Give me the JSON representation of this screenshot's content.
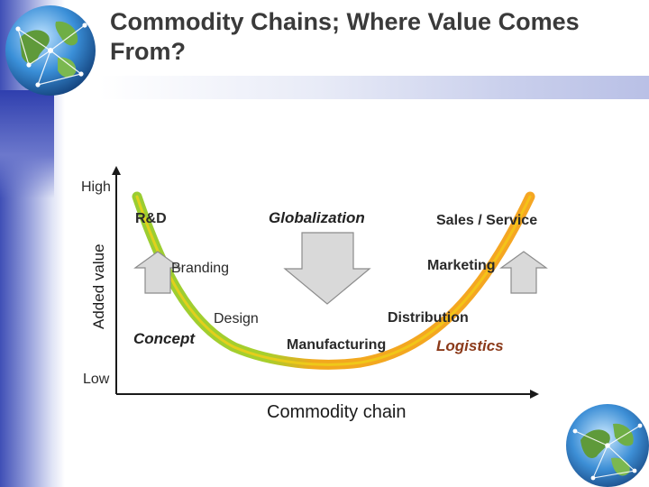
{
  "slide": {
    "title": "Commodity Chains; Where Value Comes From?"
  },
  "axes": {
    "y_title": "Added value",
    "y_high": "High",
    "y_low": "Low",
    "x_title": "Commodity chain"
  },
  "labels": {
    "rnd": "R&D",
    "globalization": "Globalization",
    "sales_service": "Sales / Service",
    "branding": "Branding",
    "marketing": "Marketing",
    "design": "Design",
    "distribution": "Distribution",
    "concept": "Concept",
    "manufacturing": "Manufacturing",
    "logistics": "Logistics"
  },
  "colors": {
    "curve_left": "#9acd32",
    "curve_right": "#f5a623",
    "arrow_fill": "#d9d9d9",
    "arrow_stroke": "#8c8c8c",
    "axis": "#1a1a1a",
    "logistics_text": "#8b3a1a"
  },
  "icons": {
    "globe_top_left": "globe-network-icon",
    "globe_bottom_right": "globe-network-icon",
    "arrow_left_up": "up-arrow-icon",
    "arrow_center_down": "down-arrow-icon",
    "arrow_right_up": "up-arrow-icon"
  }
}
